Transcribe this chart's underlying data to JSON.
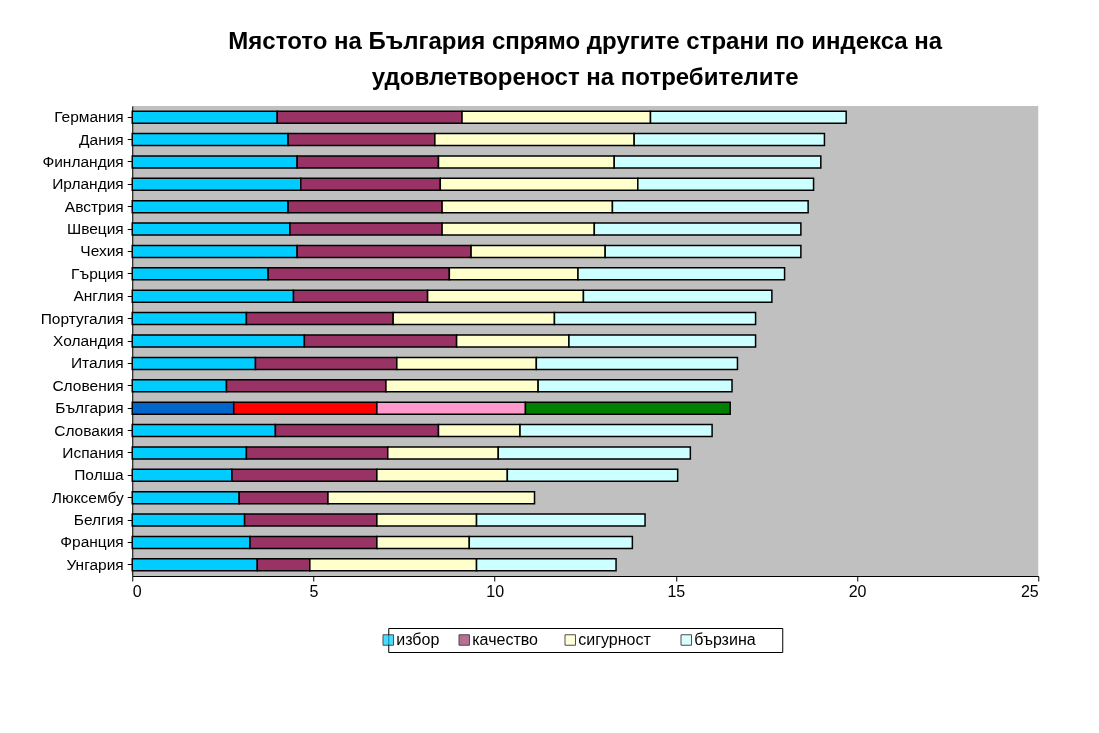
{
  "chart_data": {
    "type": "bar",
    "orientation": "horizontal",
    "stacked": true,
    "title": "Мястото на България спрямо другите страни по индекса на удовлетвореност на потребителите",
    "categories": [
      "Германия",
      "Дания",
      "Финландия",
      "Ирландия",
      "Австрия",
      "Швеция",
      "Чехия",
      "Гърция",
      "Англия",
      "Португалия",
      "Холандия",
      "Италия",
      "Словения",
      "България",
      "Словакия",
      "Испания",
      "Полша",
      "Люксембу",
      "Белгия",
      "Франция",
      "Унгария"
    ],
    "series": [
      {
        "name": "избор",
        "color": "#00ccff",
        "colors": [
          "#00ccff",
          "#00ccff",
          "#00ccff",
          "#00ccff",
          "#00ccff",
          "#00ccff",
          "#00ccff",
          "#00ccff",
          "#00ccff",
          "#00ccff",
          "#00ccff",
          "#00ccff",
          "#00ccff",
          "#0066cc",
          "#00ccff",
          "#00ccff",
          "#00ccff",
          "#00ccff",
          "#00ccff",
          "#00ccff",
          "#00ccff"
        ],
        "values": [
          4.0,
          4.3,
          4.55,
          4.65,
          4.3,
          4.35,
          4.55,
          3.75,
          4.45,
          3.15,
          4.75,
          3.4,
          2.6,
          2.8,
          3.95,
          3.15,
          2.75,
          2.95,
          3.1,
          3.25,
          3.45
        ]
      },
      {
        "name": "качество",
        "color": "#993366",
        "colors": [
          "#993366",
          "#993366",
          "#993366",
          "#993366",
          "#993366",
          "#993366",
          "#993366",
          "#993366",
          "#993366",
          "#993366",
          "#993366",
          "#993366",
          "#993366",
          "#ff0000",
          "#993366",
          "#993366",
          "#993366",
          "#993366",
          "#993366",
          "#993366",
          "#993366"
        ],
        "values": [
          5.1,
          4.05,
          3.9,
          3.85,
          4.25,
          4.2,
          4.8,
          5.0,
          3.7,
          4.05,
          4.2,
          3.9,
          4.4,
          3.95,
          4.5,
          3.9,
          4.0,
          2.45,
          3.65,
          3.5,
          1.45
        ]
      },
      {
        "name": "сигурност",
        "color": "#ffffcc",
        "colors": [
          "#ffffcc",
          "#ffffcc",
          "#ffffcc",
          "#ffffcc",
          "#ffffcc",
          "#ffffcc",
          "#ffffcc",
          "#ffffcc",
          "#ffffcc",
          "#ffffcc",
          "#ffffcc",
          "#ffffcc",
          "#ffffcc",
          "#ff99cc",
          "#ffffcc",
          "#ffffcc",
          "#ffffcc",
          "#ffffcc",
          "#ffffcc",
          "#ffffcc",
          "#ffffcc"
        ],
        "values": [
          5.2,
          5.5,
          4.85,
          5.45,
          4.7,
          4.2,
          3.7,
          3.55,
          4.3,
          4.45,
          3.1,
          3.85,
          4.2,
          4.1,
          2.25,
          3.05,
          3.6,
          5.7,
          2.75,
          2.55,
          4.6
        ]
      },
      {
        "name": "бързина",
        "color": "#ccffff",
        "colors": [
          "#ccffff",
          "#ccffff",
          "#ccffff",
          "#ccffff",
          "#ccffff",
          "#ccffff",
          "#ccffff",
          "#ccffff",
          "#ccffff",
          "#ccffff",
          "#ccffff",
          "#ccffff",
          "#ccffff",
          "#008000",
          "#ccffff",
          "#ccffff",
          "#ccffff",
          "#ccffff",
          "#ccffff",
          "#ccffff",
          "#ccffff"
        ],
        "values": [
          5.4,
          5.25,
          5.7,
          4.85,
          5.4,
          5.7,
          5.4,
          5.7,
          5.2,
          5.55,
          5.15,
          5.55,
          5.35,
          5.65,
          5.3,
          5.3,
          4.7,
          null,
          4.65,
          4.5,
          3.85
        ]
      }
    ],
    "xlim": [
      0,
      25
    ],
    "xticks": [
      0,
      5,
      10,
      15,
      20,
      25
    ],
    "grid": false,
    "legend": "bottom"
  }
}
